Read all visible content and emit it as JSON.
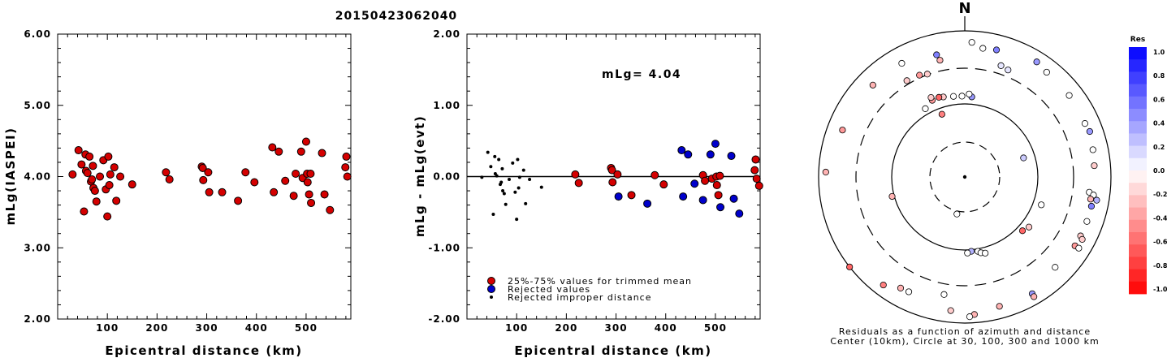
{
  "title": "20150423062040",
  "chart_data": [
    {
      "type": "scatter",
      "xlabel": "Epicentral distance (km)",
      "ylabel": "mLg(IASPEI)",
      "xlim": [
        0,
        590
      ],
      "ylim": [
        2.0,
        6.0
      ],
      "xticks": [
        "100",
        "200",
        "300",
        "400",
        "500"
      ],
      "yticks": [
        "2.00",
        "3.00",
        "4.00",
        "5.00",
        "6.00"
      ],
      "series": [
        {
          "marker": "red-circle",
          "points": [
            [
              30,
              4.03
            ],
            [
              42,
              4.37
            ],
            [
              48,
              4.17
            ],
            [
              53,
              3.51
            ],
            [
              56,
              4.31
            ],
            [
              57,
              4.08
            ],
            [
              60,
              4.05
            ],
            [
              64,
              4.28
            ],
            [
              67,
              3.93
            ],
            [
              69,
              3.96
            ],
            [
              71,
              4.15
            ],
            [
              72,
              3.84
            ],
            [
              75,
              3.8
            ],
            [
              78,
              3.65
            ],
            [
              85,
              4.0
            ],
            [
              92,
              4.23
            ],
            [
              97,
              3.82
            ],
            [
              100,
              3.44
            ],
            [
              102,
              4.28
            ],
            [
              104,
              3.88
            ],
            [
              106,
              4.03
            ],
            [
              114,
              4.13
            ],
            [
              118,
              3.66
            ],
            [
              126,
              4.0
            ],
            [
              150,
              3.89
            ],
            [
              218,
              4.06
            ],
            [
              225,
              3.96
            ],
            [
              290,
              4.14
            ],
            [
              292,
              4.12
            ],
            [
              293,
              3.95
            ],
            [
              303,
              4.06
            ],
            [
              305,
              3.78
            ],
            [
              331,
              3.78
            ],
            [
              363,
              3.66
            ],
            [
              378,
              4.06
            ],
            [
              396,
              3.92
            ],
            [
              432,
              4.41
            ],
            [
              435,
              3.78
            ],
            [
              445,
              4.35
            ],
            [
              458,
              3.94
            ],
            [
              475,
              3.73
            ],
            [
              479,
              4.04
            ],
            [
              490,
              4.35
            ],
            [
              493,
              3.98
            ],
            [
              500,
              4.49
            ],
            [
              502,
              4.04
            ],
            [
              503,
              3.92
            ],
            [
              506,
              3.75
            ],
            [
              509,
              4.04
            ],
            [
              510,
              3.63
            ],
            [
              532,
              4.33
            ],
            [
              537,
              3.75
            ],
            [
              548,
              3.53
            ],
            [
              579,
              4.13
            ],
            [
              581,
              4.28
            ],
            [
              583,
              4.0
            ]
          ]
        }
      ]
    },
    {
      "type": "scatter",
      "xlabel": "Epicentral distance (km)",
      "ylabel": "mLg - mLg(evt)",
      "xlim": [
        0,
        590
      ],
      "ylim": [
        -2.0,
        2.0
      ],
      "xticks": [
        "100",
        "200",
        "300",
        "400",
        "500"
      ],
      "yticks": [
        "-2.00",
        "-1.00",
        "0.00",
        "1.00",
        "2.00"
      ],
      "annotation": "mLg= 4.04",
      "reference_line_y": 0.0,
      "legend": {
        "position": "bottom-left",
        "entries": [
          {
            "label": "25%-75% values for trimmed mean",
            "marker": "red-circle"
          },
          {
            "label": "Rejected values",
            "marker": "blue-circle"
          },
          {
            "label": "Rejected improper distance",
            "marker": "black-dot"
          }
        ]
      },
      "series": [
        {
          "name": "25%-75% values for trimmed mean",
          "marker": "red-circle",
          "points": [
            [
              218,
              0.03
            ],
            [
              225,
              -0.09
            ],
            [
              290,
              0.12
            ],
            [
              292,
              0.09
            ],
            [
              293,
              -0.08
            ],
            [
              303,
              0.03
            ],
            [
              331,
              -0.26
            ],
            [
              378,
              0.02
            ],
            [
              396,
              -0.11
            ],
            [
              475,
              0.02
            ],
            [
              479,
              -0.06
            ],
            [
              493,
              -0.03
            ],
            [
              502,
              0.0
            ],
            [
              503,
              -0.12
            ],
            [
              506,
              -0.26
            ],
            [
              509,
              0.01
            ],
            [
              579,
              0.09
            ],
            [
              581,
              0.24
            ],
            [
              583,
              -0.03
            ],
            [
              588,
              -0.13
            ]
          ]
        },
        {
          "name": "Rejected values",
          "marker": "blue-circle",
          "points": [
            [
              305,
              -0.28
            ],
            [
              363,
              -0.38
            ],
            [
              432,
              0.37
            ],
            [
              435,
              -0.28
            ],
            [
              445,
              0.31
            ],
            [
              458,
              -0.1
            ],
            [
              475,
              -0.33
            ],
            [
              490,
              0.31
            ],
            [
              500,
              0.46
            ],
            [
              510,
              -0.43
            ],
            [
              532,
              0.29
            ],
            [
              537,
              -0.31
            ],
            [
              548,
              -0.52
            ]
          ]
        },
        {
          "name": "Rejected improper distance",
          "marker": "black-dot",
          "points": [
            [
              30,
              -0.01
            ],
            [
              42,
              0.34
            ],
            [
              48,
              0.14
            ],
            [
              53,
              -0.53
            ],
            [
              56,
              0.28
            ],
            [
              57,
              0.04
            ],
            [
              60,
              0.01
            ],
            [
              64,
              0.24
            ],
            [
              67,
              -0.11
            ],
            [
              69,
              -0.08
            ],
            [
              71,
              0.11
            ],
            [
              72,
              -0.2
            ],
            [
              75,
              -0.24
            ],
            [
              78,
              -0.39
            ],
            [
              85,
              -0.04
            ],
            [
              92,
              0.19
            ],
            [
              97,
              -0.22
            ],
            [
              100,
              -0.6
            ],
            [
              102,
              0.24
            ],
            [
              104,
              -0.16
            ],
            [
              106,
              -0.01
            ],
            [
              114,
              0.09
            ],
            [
              118,
              -0.38
            ],
            [
              126,
              -0.04
            ],
            [
              150,
              -0.15
            ]
          ]
        }
      ]
    },
    {
      "type": "scatter",
      "subtype": "polar-residuals",
      "north_label": "N",
      "caption_line1": "Residuals as a function of azimuth and distance",
      "caption_line2": "Center (10km), Circle at 30, 100, 300 and 1000 km",
      "rings_km": [
        30,
        100,
        300,
        1000
      ],
      "colorbar": {
        "title": "Res",
        "range": [
          -1.0,
          1.0
        ],
        "ticks": [
          "1.0",
          "0.8",
          "0.6",
          "0.4",
          "0.2",
          "0.0",
          "-0.2",
          "-0.4",
          "-0.6",
          "-0.8",
          "-1.0"
        ],
        "positive_color": "#0000ff",
        "negative_color": "#ff0000"
      },
      "points": [
        {
          "dist": 33,
          "az": 192,
          "res": 0.0
        },
        {
          "dist": 105,
          "az": 175,
          "res": 0.3
        },
        {
          "dist": 108,
          "az": 170,
          "res": 0.0
        },
        {
          "dist": 115,
          "az": 168,
          "res": 0.0
        },
        {
          "dist": 110,
          "az": 178,
          "res": 0.0
        },
        {
          "dist": 120,
          "az": 165,
          "res": 0.0
        },
        {
          "dist": 130,
          "az": 110,
          "res": 0.0
        },
        {
          "dist": 70,
          "az": 72,
          "res": 0.2
        },
        {
          "dist": 82,
          "az": 340,
          "res": -0.5
        },
        {
          "dist": 126,
          "az": 5,
          "res": 0.4
        },
        {
          "dist": 128,
          "az": 358,
          "res": 0.0
        },
        {
          "dist": 137,
          "az": 3,
          "res": 0.0
        },
        {
          "dist": 130,
          "az": 352,
          "res": 0.0
        },
        {
          "dist": 136,
          "az": 345,
          "res": -0.2
        },
        {
          "dist": 140,
          "az": 342,
          "res": -0.6
        },
        {
          "dist": 138,
          "az": 337,
          "res": -0.4
        },
        {
          "dist": 120,
          "az": 330,
          "res": 0.0
        },
        {
          "dist": 152,
          "az": 337,
          "res": -0.2
        },
        {
          "dist": 107,
          "az": 255,
          "res": -0.3
        },
        {
          "dist": 120,
          "az": 133,
          "res": -0.6
        },
        {
          "dist": 130,
          "az": 128,
          "res": -0.2
        },
        {
          "dist": 335,
          "az": 336,
          "res": -0.4
        },
        {
          "dist": 345,
          "az": 329,
          "res": -0.2
        },
        {
          "dist": 315,
          "az": 340,
          "res": -0.2
        },
        {
          "dist": 430,
          "az": 348,
          "res": -0.3
        },
        {
          "dist": 400,
          "az": 18,
          "res": 0.1
        },
        {
          "dist": 380,
          "az": 22,
          "res": 0.1
        },
        {
          "dist": 520,
          "az": 347,
          "res": 0.5
        },
        {
          "dist": 600,
          "az": 8,
          "res": 0.0
        },
        {
          "dist": 700,
          "az": 3,
          "res": 0.0
        },
        {
          "dist": 620,
          "az": 14,
          "res": 0.5
        },
        {
          "dist": 720,
          "az": 32,
          "res": 0.4
        },
        {
          "dist": 660,
          "az": 38,
          "res": 0.0
        },
        {
          "dist": 650,
          "az": 52,
          "res": 0.0
        },
        {
          "dist": 630,
          "az": 66,
          "res": 0.0
        },
        {
          "dist": 660,
          "az": 70,
          "res": 0.4
        },
        {
          "dist": 620,
          "az": 78,
          "res": 0.0
        },
        {
          "dist": 600,
          "az": 85,
          "res": -0.2
        },
        {
          "dist": 520,
          "az": 97,
          "res": 0.0
        },
        {
          "dist": 600,
          "az": 98,
          "res": 0.0
        },
        {
          "dist": 560,
          "az": 100,
          "res": -0.3
        },
        {
          "dist": 600,
          "az": 103,
          "res": 0.5
        },
        {
          "dist": 680,
          "az": 100,
          "res": 0.3
        },
        {
          "dist": 600,
          "az": 110,
          "res": 0.0
        },
        {
          "dist": 600,
          "az": 117,
          "res": -0.2
        },
        {
          "dist": 660,
          "az": 118,
          "res": -0.2
        },
        {
          "dist": 600,
          "az": 122,
          "res": -0.4
        },
        {
          "dist": 690,
          "az": 122,
          "res": 0.0
        },
        {
          "dist": 560,
          "az": 135,
          "res": 0.0
        },
        {
          "dist": 700,
          "az": 150,
          "res": 0.4
        },
        {
          "dist": 780,
          "az": 150,
          "res": -0.3
        },
        {
          "dist": 680,
          "az": 165,
          "res": -0.3
        },
        {
          "dist": 770,
          "az": 176,
          "res": -0.3
        },
        {
          "dist": 820,
          "az": 178,
          "res": 0.0
        },
        {
          "dist": 690,
          "az": 186,
          "res": -0.2
        },
        {
          "dist": 560,
          "az": 206,
          "res": 0.0
        },
        {
          "dist": 570,
          "az": 210,
          "res": -0.3
        },
        {
          "dist": 710,
          "az": 217,
          "res": -0.5
        },
        {
          "dist": 1000,
          "az": 232,
          "res": -0.6
        },
        {
          "dist": 800,
          "az": 272,
          "res": -0.3
        },
        {
          "dist": 620,
          "az": 291,
          "res": -0.4
        },
        {
          "dist": 600,
          "az": 315,
          "res": -0.3
        },
        {
          "dist": 600,
          "az": 331,
          "res": 0.0
        },
        {
          "dist": 430,
          "az": 190,
          "res": 0.0
        }
      ]
    }
  ]
}
